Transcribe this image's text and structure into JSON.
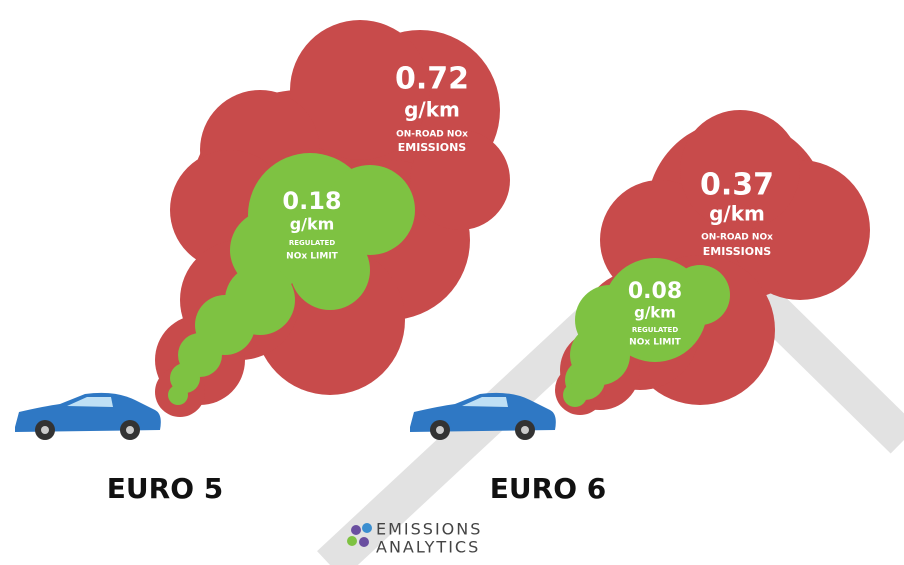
{
  "panels": [
    {
      "label": "EURO 5",
      "emissions": {
        "value": 0.72,
        "unit": "g/km",
        "caption": [
          "ON-ROAD NOx",
          "EMISSIONS"
        ]
      },
      "limit": {
        "value": 0.18,
        "unit": "g/km",
        "caption": [
          "REGULATED",
          "NOx LIMIT"
        ]
      }
    },
    {
      "label": "EURO 6",
      "emissions": {
        "value": 0.37,
        "unit": "g/km",
        "caption": [
          "ON-ROAD NOx",
          "EMISSIONS"
        ]
      },
      "limit": {
        "value": 0.08,
        "unit": "g/km",
        "caption": [
          "REGULATED",
          "NOx LIMIT"
        ]
      }
    }
  ],
  "logo": [
    "EMISSIONS",
    "ANALYTICS"
  ]
}
